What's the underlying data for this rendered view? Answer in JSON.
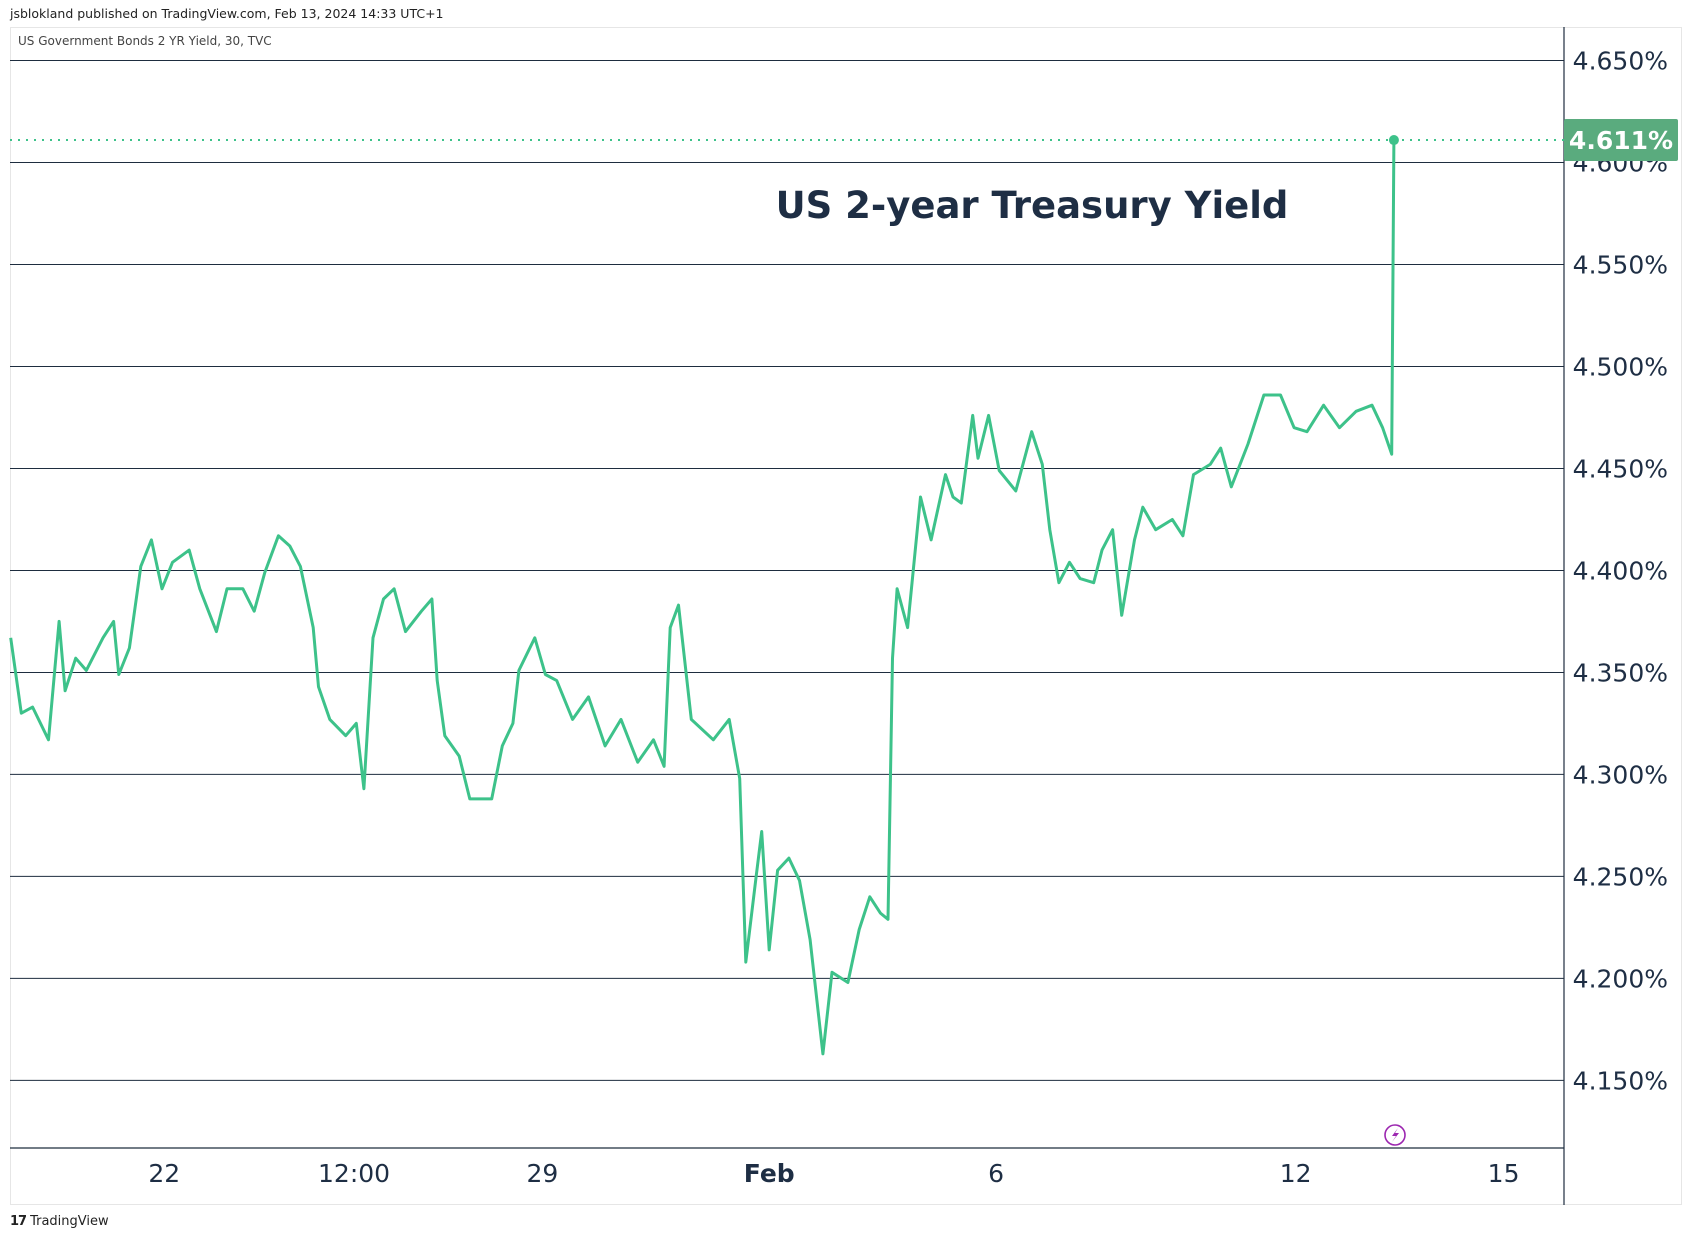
{
  "header": {
    "published": "jsblokland published on TradingView.com, Feb 13, 2024 14:33 UTC+1"
  },
  "symbol_label": "US Government Bonds 2 YR Yield, 30, TVC",
  "footer": {
    "brand": "TradingView",
    "logo_text": "17"
  },
  "colors": {
    "line": "#3dc28a",
    "grid": "#1e2d3f",
    "price_label_bg": "#5aab7e",
    "axis_text": "#1e2e44",
    "event_icon": "#9c27b0"
  },
  "chart_data": {
    "type": "line",
    "title": "US 2-year Treasury Yield",
    "xlabel": "",
    "ylabel": "",
    "x_unit": "trading days since Jan 22",
    "ylim": [
      4.115,
      4.665
    ],
    "yticks": [
      4.65,
      4.6,
      4.55,
      4.5,
      4.45,
      4.4,
      4.35,
      4.3,
      4.25,
      4.2,
      4.15
    ],
    "ytick_labels": [
      "4.650%",
      "4.600%",
      "4.550%",
      "4.500%",
      "4.450%",
      "4.400%",
      "4.350%",
      "4.300%",
      "4.250%",
      "4.200%",
      "4.150%"
    ],
    "xticks": [
      {
        "label": "22",
        "t": 0,
        "bold": false
      },
      {
        "label": "12:00",
        "t": 2.51,
        "bold": false
      },
      {
        "label": "29",
        "t": 5,
        "bold": false
      },
      {
        "label": "Feb",
        "t": 8,
        "bold": true
      },
      {
        "label": "6",
        "t": 11,
        "bold": false
      },
      {
        "label": "12",
        "t": 14.96,
        "bold": false
      },
      {
        "label": "15",
        "t": 17.71,
        "bold": false
      }
    ],
    "last_value": 4.611,
    "last_label": "4.611%",
    "x": [
      -2.03,
      -1.89,
      -1.74,
      -1.53,
      -1.39,
      -1.31,
      -1.17,
      -1.03,
      -0.81,
      -0.67,
      -0.6,
      -0.46,
      -0.31,
      -0.17,
      -0.03,
      0.11,
      0.33,
      0.47,
      0.69,
      0.83,
      1.04,
      1.19,
      1.33,
      1.51,
      1.66,
      1.8,
      1.97,
      2.04,
      2.19,
      2.4,
      2.54,
      2.64,
      2.76,
      2.9,
      3.04,
      3.19,
      3.4,
      3.54,
      3.61,
      3.71,
      3.9,
      4.04,
      4.33,
      4.47,
      4.61,
      4.69,
      4.9,
      5.04,
      5.19,
      5.4,
      5.61,
      5.83,
      6.04,
      6.26,
      6.47,
      6.61,
      6.69,
      6.8,
      6.97,
      7.26,
      7.47,
      7.61,
      7.69,
      7.83,
      7.9,
      8.0,
      8.11,
      8.26,
      8.4,
      8.54,
      8.71,
      8.83,
      9.04,
      9.19,
      9.33,
      9.47,
      9.57,
      9.63,
      9.69,
      9.83,
      10.0,
      10.14,
      10.33,
      10.43,
      10.54,
      10.69,
      10.76,
      10.9,
      11.04,
      11.26,
      11.47,
      11.61,
      11.71,
      11.83,
      11.97,
      12.11,
      12.29,
      12.4,
      12.54,
      12.66,
      12.83,
      12.94,
      13.11,
      13.33,
      13.47,
      13.61,
      13.83,
      13.97,
      14.11,
      14.33,
      14.54,
      14.76,
      14.94,
      15.11,
      15.33,
      15.54,
      15.76,
      15.97,
      16.11,
      16.23,
      16.26
    ],
    "values": [
      4.367,
      4.33,
      4.333,
      4.317,
      4.375,
      4.341,
      4.357,
      4.351,
      4.367,
      4.375,
      4.349,
      4.362,
      4.402,
      4.415,
      4.391,
      4.404,
      4.41,
      4.391,
      4.37,
      4.391,
      4.391,
      4.38,
      4.399,
      4.417,
      4.412,
      4.402,
      4.372,
      4.343,
      4.327,
      4.319,
      4.325,
      4.293,
      4.367,
      4.386,
      4.391,
      4.37,
      4.38,
      4.386,
      4.346,
      4.319,
      4.309,
      4.288,
      4.288,
      4.314,
      4.325,
      4.351,
      4.367,
      4.349,
      4.346,
      4.327,
      4.338,
      4.314,
      4.327,
      4.306,
      4.317,
      4.304,
      4.372,
      4.383,
      4.327,
      4.317,
      4.327,
      4.298,
      4.208,
      4.251,
      4.272,
      4.214,
      4.253,
      4.259,
      4.248,
      4.219,
      4.163,
      4.203,
      4.198,
      4.224,
      4.24,
      4.232,
      4.229,
      4.357,
      4.391,
      4.372,
      4.436,
      4.415,
      4.447,
      4.436,
      4.433,
      4.476,
      4.455,
      4.476,
      4.449,
      4.439,
      4.468,
      4.452,
      4.42,
      4.394,
      4.404,
      4.396,
      4.394,
      4.41,
      4.42,
      4.378,
      4.415,
      4.431,
      4.42,
      4.425,
      4.417,
      4.447,
      4.452,
      4.46,
      4.441,
      4.462,
      4.486,
      4.486,
      4.47,
      4.468,
      4.481,
      4.47,
      4.478,
      4.481,
      4.47,
      4.457,
      4.611
    ]
  }
}
